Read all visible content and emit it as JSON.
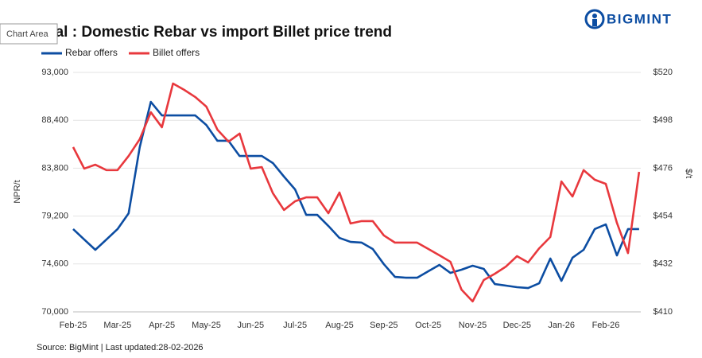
{
  "ui": {
    "tooltip": "Chart Area",
    "logo": "BIGMINT"
  },
  "chart_data": {
    "type": "line",
    "title": "pal : Domestic Rebar vs import Billet price trend",
    "source": "Source: BigMint | Last updated:28-02-2026",
    "ylabel": "NPR/t",
    "y2label": "$/t",
    "categories": [
      "Feb-25",
      null,
      null,
      null,
      "Mar-25",
      null,
      null,
      null,
      "Apr-25",
      null,
      null,
      null,
      "May-25",
      null,
      null,
      null,
      "Jun-25",
      null,
      null,
      null,
      "Jul-25",
      null,
      null,
      null,
      "Aug-25",
      null,
      null,
      null,
      "Sep-25",
      null,
      null,
      null,
      "Oct-25",
      null,
      null,
      null,
      "Nov-25",
      null,
      null,
      null,
      "Dec-25",
      null,
      null,
      null,
      "Jan-26",
      null,
      null,
      null,
      "Feb-26",
      null,
      null,
      null
    ],
    "series": [
      {
        "name": "Rebar offers",
        "color": "#0c4da2",
        "axis": "y",
        "values": [
          77950,
          76950,
          75960,
          76950,
          77950,
          79470,
          85810,
          90170,
          88870,
          88870,
          88870,
          88870,
          87950,
          86430,
          86430,
          84970,
          84970,
          84970,
          84290,
          82990,
          81760,
          79320,
          79320,
          78250,
          77100,
          76720,
          76650,
          76040,
          74580,
          73360,
          73280,
          73280,
          73900,
          74510,
          73740,
          74050,
          74430,
          74130,
          72670,
          72520,
          72370,
          72290,
          72750,
          75120,
          72980,
          75200,
          75960,
          77950,
          78400,
          75420,
          77950,
          77950
        ]
      },
      {
        "name": "Billet offers",
        "color": "#e8383d",
        "axis": "y2",
        "values": [
          485.7,
          475.8,
          477.6,
          475.1,
          475.1,
          481.6,
          489.3,
          501.7,
          494.8,
          514.9,
          512,
          508.7,
          504.3,
          493.7,
          488.2,
          491.9,
          475.8,
          476.5,
          464.5,
          456.8,
          460.8,
          462.6,
          462.6,
          455.3,
          464.8,
          450.6,
          451.7,
          451.7,
          445.1,
          441.8,
          441.8,
          441.8,
          438.9,
          436,
          433,
          420.2,
          414.8,
          424.6,
          427.5,
          430.8,
          435.6,
          432.7,
          439.2,
          444.4,
          469.9,
          463,
          475.1,
          470.7,
          468.8,
          450.9,
          437,
          474.3
        ]
      }
    ],
    "ylim": [
      70000,
      93000
    ],
    "yticks": [
      {
        "value": 70000,
        "label": "70,000"
      },
      {
        "value": 74600,
        "label": "74,600"
      },
      {
        "value": 79200,
        "label": "79,200"
      },
      {
        "value": 83800,
        "label": "83,800"
      },
      {
        "value": 88400,
        "label": "88,400"
      },
      {
        "value": 93000,
        "label": "93,000"
      }
    ],
    "y2lim": [
      410,
      520
    ],
    "y2ticks": [
      {
        "value": 410,
        "label": "$410"
      },
      {
        "value": 432,
        "label": "$432"
      },
      {
        "value": 454,
        "label": "$454"
      },
      {
        "value": 476,
        "label": "$476"
      },
      {
        "value": 498,
        "label": "$498"
      },
      {
        "value": 520,
        "label": "$520"
      }
    ],
    "grid": true,
    "legend": "top-left"
  }
}
